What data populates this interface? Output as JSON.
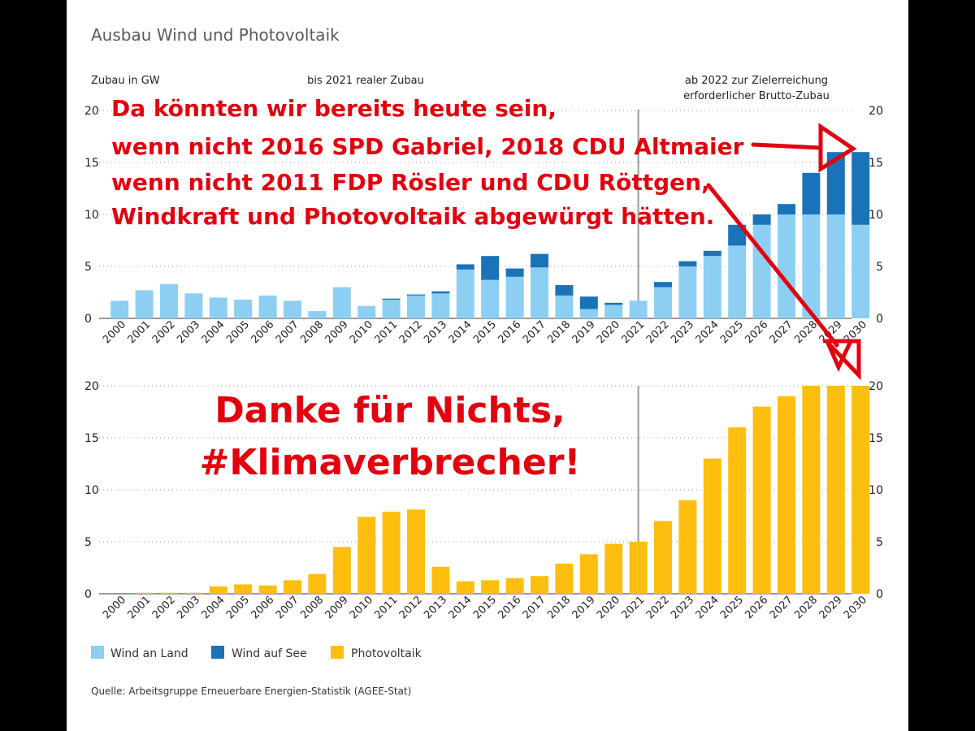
{
  "title": "Ausbau Wind und Photovoltaik",
  "unit_label": "Zubau in GW",
  "period_label_real": "bis 2021 realer Zubau",
  "period_label_target": [
    "ab 2022 zur Zielerreichung",
    "erforderlicher Brutto-Zubau"
  ],
  "legend": {
    "wind_land": "Wind an Land",
    "wind_see": "Wind auf See",
    "pv": "Photovoltaik"
  },
  "source": "Quelle: Arbeitsgruppe Erneuerbare Energien-Statistik (AGEE-Stat)",
  "colors": {
    "wind_land": "#8dcff2",
    "wind_see": "#1a73b8",
    "pv": "#fdbe0f",
    "overlay_text": "#e3000f"
  },
  "overlay": {
    "lines_top": [
      "Da könnten wir bereits heute sein,",
      "wenn nicht 2016 SPD Gabriel, 2018 CDU Altmaier",
      "wenn nicht 2011 FDP Rösler und CDU Röttgen,",
      "Windkraft und Photovoltaik abgewürgt hätten."
    ],
    "lines_bottom": [
      "Danke für Nichts,",
      "#Klimaverbrecher!"
    ]
  },
  "chart_data": [
    {
      "type": "bar",
      "stacked": true,
      "ylabel": "Zubau in GW",
      "ylim": [
        0,
        20
      ],
      "yticks": [
        0,
        5,
        10,
        15,
        20
      ],
      "categories": [
        "2000",
        "2001",
        "2002",
        "2003",
        "2004",
        "2005",
        "2006",
        "2007",
        "2008",
        "2009",
        "2010",
        "2011",
        "2012",
        "2013",
        "2014",
        "2015",
        "2016",
        "2017",
        "2018",
        "2019",
        "2020",
        "2021",
        "2022",
        "2023",
        "2024",
        "2025",
        "2026",
        "2027",
        "2028",
        "2029",
        "2030"
      ],
      "series": [
        {
          "name": "Wind an Land",
          "values": [
            1.7,
            2.7,
            3.3,
            2.4,
            2.0,
            1.8,
            2.2,
            1.7,
            0.7,
            3.0,
            1.2,
            1.8,
            2.2,
            2.4,
            4.7,
            3.7,
            4.0,
            4.9,
            2.2,
            0.9,
            1.3,
            1.7,
            3.0,
            5.0,
            6.0,
            7.0,
            9.0,
            10.0,
            10.0,
            10.0,
            9.0
          ]
        },
        {
          "name": "Wind auf See",
          "values": [
            0,
            0,
            0,
            0,
            0,
            0,
            0,
            0,
            0,
            0,
            0,
            0.1,
            0.1,
            0.2,
            0.5,
            2.3,
            0.8,
            1.3,
            1.0,
            1.2,
            0.2,
            0,
            0.5,
            0.5,
            0.5,
            2.0,
            1.0,
            1.0,
            4.0,
            6.0,
            7.0
          ]
        }
      ]
    },
    {
      "type": "bar",
      "ylim": [
        0,
        20
      ],
      "yticks": [
        0,
        5,
        10,
        15,
        20
      ],
      "categories": [
        "2000",
        "2001",
        "2002",
        "2003",
        "2004",
        "2005",
        "2006",
        "2007",
        "2008",
        "2009",
        "2010",
        "2011",
        "2012",
        "2013",
        "2014",
        "2015",
        "2016",
        "2017",
        "2018",
        "2019",
        "2020",
        "2021",
        "2022",
        "2023",
        "2024",
        "2025",
        "2026",
        "2027",
        "2028",
        "2029",
        "2030"
      ],
      "series": [
        {
          "name": "Photovoltaik",
          "values": [
            0.0,
            0.1,
            0.1,
            0.1,
            0.7,
            0.9,
            0.8,
            1.3,
            1.9,
            4.5,
            7.4,
            7.9,
            8.1,
            2.6,
            1.2,
            1.3,
            1.5,
            1.7,
            2.9,
            3.8,
            4.8,
            5.0,
            7.0,
            9.0,
            13.0,
            16.0,
            18.0,
            19.0,
            20.0,
            20.0,
            20.0
          ]
        }
      ]
    }
  ]
}
